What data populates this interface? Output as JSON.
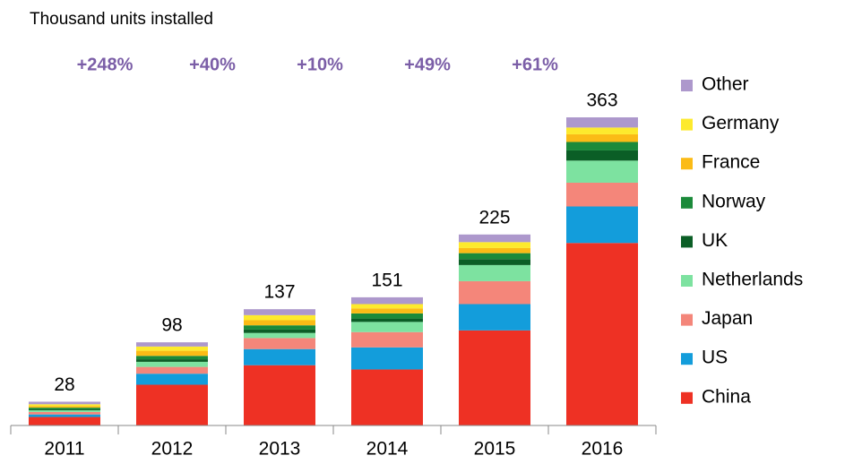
{
  "chart_data": {
    "type": "stacked_bar",
    "title": "Thousand units installed",
    "categories": [
      "2011",
      "2012",
      "2013",
      "2014",
      "2015",
      "2016"
    ],
    "totals": [
      "28",
      "98",
      "137",
      "151",
      "225",
      "363"
    ],
    "annotations": [
      "+248%",
      "+40%",
      "+10%",
      "+49%",
      "+61%"
    ],
    "annotation_color": "#7b5ea7",
    "series": [
      {
        "name": "China",
        "color": "#ee3124",
        "values": [
          10,
          48,
          71,
          66,
          112,
          215
        ]
      },
      {
        "name": "US",
        "color": "#139ddb",
        "values": [
          3,
          13,
          19,
          26,
          31,
          43
        ]
      },
      {
        "name": "Japan",
        "color": "#f4867a",
        "values": [
          3,
          8,
          13,
          18,
          27,
          28
        ]
      },
      {
        "name": "Netherlands",
        "color": "#7de2a0",
        "values": [
          2,
          6,
          6,
          12,
          19,
          26
        ]
      },
      {
        "name": "UK",
        "color": "#0b5e26",
        "values": [
          1,
          3,
          4,
          4,
          7,
          12
        ]
      },
      {
        "name": "Norway",
        "color": "#1b8a3a",
        "values": [
          2,
          4,
          5,
          6,
          7,
          10
        ]
      },
      {
        "name": "France",
        "color": "#fbbb16",
        "values": [
          2,
          6,
          6,
          6,
          6,
          9
        ]
      },
      {
        "name": "Germany",
        "color": "#fdea2d",
        "values": [
          2,
          5,
          6,
          5,
          7,
          8
        ]
      },
      {
        "name": "Other",
        "color": "#ad98cc",
        "values": [
          3,
          5,
          7,
          8,
          9,
          12
        ]
      }
    ],
    "legend": "right"
  }
}
